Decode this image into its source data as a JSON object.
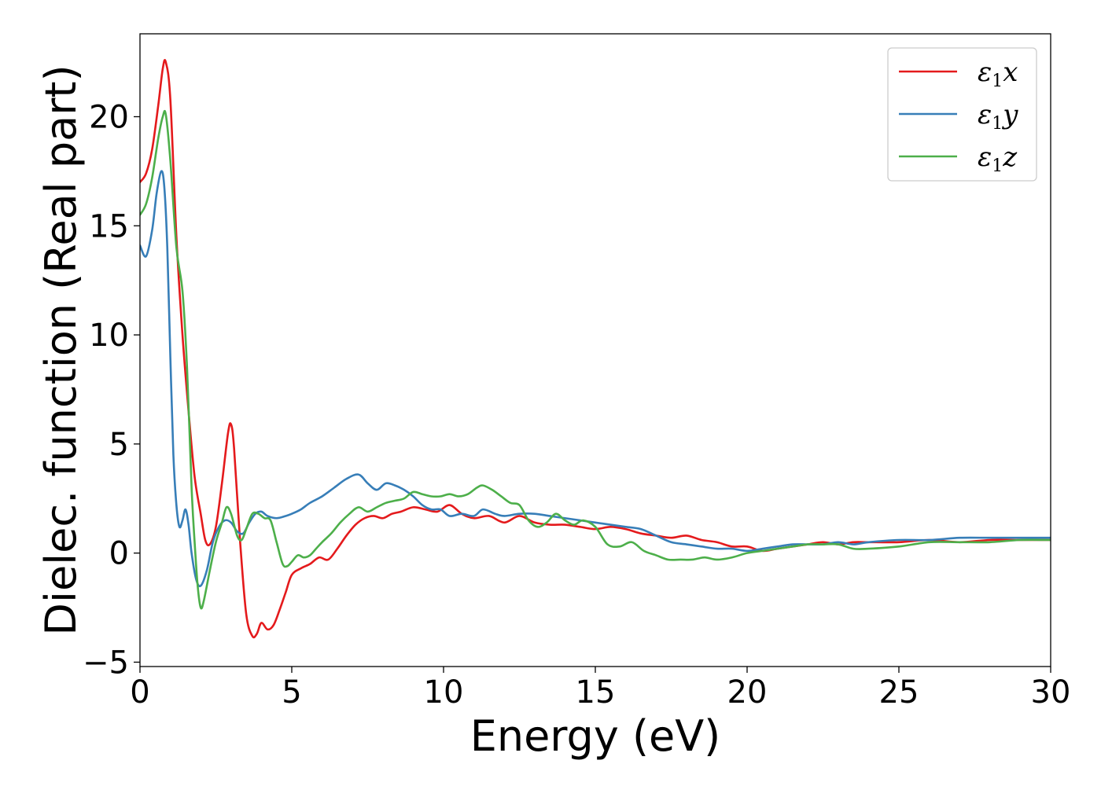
{
  "chart_data": {
    "type": "line",
    "title": "",
    "xlabel": "Energy (eV)",
    "ylabel": "Dielec. function (Real part)",
    "xlim": [
      0,
      30
    ],
    "ylim": [
      -5.2,
      23.8
    ],
    "xticks": [
      0,
      5,
      10,
      15,
      20,
      25,
      30
    ],
    "xtick_labels": [
      "0",
      "5",
      "10",
      "15",
      "20",
      "25",
      "30"
    ],
    "yticks": [
      -5,
      0,
      5,
      10,
      15,
      20
    ],
    "ytick_labels": [
      "−5",
      "0",
      "5",
      "10",
      "15",
      "20"
    ],
    "grid": false,
    "legend_position": "top-right",
    "series": [
      {
        "name": "ε1x",
        "name_base": "ε",
        "name_sub": "1",
        "name_tail": "x",
        "color": "#e41a1c",
        "x": [
          0,
          0.2,
          0.4,
          0.6,
          0.75,
          0.85,
          1.0,
          1.2,
          1.4,
          1.6,
          1.8,
          2.0,
          2.15,
          2.3,
          2.5,
          2.7,
          2.9,
          3.0,
          3.1,
          3.3,
          3.5,
          3.7,
          3.85,
          4.0,
          4.2,
          4.4,
          4.6,
          4.8,
          5.0,
          5.3,
          5.6,
          5.9,
          6.2,
          6.5,
          6.8,
          7.1,
          7.4,
          7.7,
          8.0,
          8.3,
          8.6,
          9.0,
          9.4,
          9.8,
          10.2,
          10.6,
          11.0,
          11.5,
          12.0,
          12.5,
          13.0,
          13.5,
          14.0,
          14.5,
          15.0,
          15.5,
          16.0,
          16.5,
          17.0,
          17.5,
          18.0,
          18.5,
          19.0,
          19.5,
          20.0,
          20.5,
          21.0,
          21.5,
          22.0,
          22.5,
          23.0,
          23.5,
          24.0,
          25.0,
          26.0,
          27.0,
          28.0,
          29.0,
          30.0
        ],
        "y": [
          17.0,
          17.4,
          18.5,
          20.5,
          22.2,
          22.5,
          20.8,
          14.5,
          10.0,
          6.5,
          3.5,
          1.8,
          0.6,
          0.4,
          1.2,
          3.2,
          5.5,
          5.9,
          4.8,
          0.5,
          -2.8,
          -3.8,
          -3.7,
          -3.2,
          -3.5,
          -3.3,
          -2.6,
          -1.8,
          -1.0,
          -0.7,
          -0.5,
          -0.2,
          -0.3,
          0.2,
          0.8,
          1.3,
          1.6,
          1.7,
          1.6,
          1.8,
          1.9,
          2.1,
          2.0,
          1.9,
          2.2,
          1.8,
          1.6,
          1.7,
          1.4,
          1.7,
          1.4,
          1.3,
          1.3,
          1.2,
          1.1,
          1.2,
          1.1,
          0.9,
          0.8,
          0.7,
          0.8,
          0.6,
          0.5,
          0.3,
          0.3,
          0.1,
          0.2,
          0.3,
          0.4,
          0.5,
          0.4,
          0.5,
          0.5,
          0.5,
          0.6,
          0.5,
          0.6,
          0.6,
          0.6
        ]
      },
      {
        "name": "ε1y",
        "name_base": "ε",
        "name_sub": "1",
        "name_tail": "y",
        "color": "#377eb8",
        "x": [
          0,
          0.2,
          0.4,
          0.55,
          0.7,
          0.8,
          0.9,
          1.0,
          1.1,
          1.2,
          1.3,
          1.4,
          1.5,
          1.6,
          1.7,
          1.85,
          2.0,
          2.2,
          2.4,
          2.6,
          2.8,
          3.0,
          3.2,
          3.4,
          3.6,
          3.8,
          4.0,
          4.2,
          4.5,
          4.8,
          5.0,
          5.3,
          5.6,
          6.0,
          6.4,
          6.8,
          7.2,
          7.5,
          7.8,
          8.1,
          8.4,
          8.7,
          9.0,
          9.3,
          9.6,
          9.9,
          10.2,
          10.6,
          11.0,
          11.3,
          11.7,
          12.0,
          12.5,
          13.0,
          13.5,
          14.0,
          14.5,
          15.0,
          15.5,
          16.0,
          16.5,
          17.0,
          17.5,
          18.0,
          18.5,
          19.0,
          19.5,
          20.0,
          20.5,
          21.0,
          21.5,
          22.0,
          22.5,
          23.0,
          23.5,
          24.0,
          25.0,
          26.0,
          27.0,
          28.0,
          29.0,
          30.0
        ],
        "y": [
          14.1,
          13.6,
          14.8,
          16.5,
          17.5,
          16.8,
          14.0,
          9.0,
          4.5,
          2.2,
          1.2,
          1.5,
          2.0,
          1.3,
          0.0,
          -1.2,
          -1.5,
          -0.8,
          0.5,
          1.2,
          1.5,
          1.4,
          1.0,
          0.9,
          1.4,
          1.8,
          1.9,
          1.7,
          1.6,
          1.7,
          1.8,
          2.0,
          2.3,
          2.6,
          3.0,
          3.4,
          3.6,
          3.2,
          2.9,
          3.2,
          3.1,
          2.9,
          2.6,
          2.2,
          2.0,
          2.0,
          1.7,
          1.8,
          1.7,
          2.0,
          1.8,
          1.7,
          1.8,
          1.8,
          1.7,
          1.6,
          1.5,
          1.4,
          1.3,
          1.2,
          1.1,
          0.8,
          0.5,
          0.4,
          0.3,
          0.2,
          0.2,
          0.1,
          0.2,
          0.3,
          0.4,
          0.4,
          0.4,
          0.5,
          0.4,
          0.5,
          0.6,
          0.6,
          0.7,
          0.7,
          0.7,
          0.7
        ]
      },
      {
        "name": "ε1z",
        "name_base": "ε",
        "name_sub": "1",
        "name_tail": "z",
        "color": "#4daf4a",
        "x": [
          0,
          0.2,
          0.4,
          0.6,
          0.75,
          0.85,
          1.0,
          1.2,
          1.4,
          1.55,
          1.7,
          1.8,
          1.9,
          2.0,
          2.1,
          2.3,
          2.5,
          2.7,
          2.85,
          3.0,
          3.2,
          3.35,
          3.5,
          3.7,
          3.9,
          4.1,
          4.3,
          4.5,
          4.7,
          4.85,
          5.0,
          5.2,
          5.4,
          5.6,
          5.8,
          6.0,
          6.3,
          6.6,
          6.9,
          7.2,
          7.5,
          7.8,
          8.1,
          8.4,
          8.7,
          9.0,
          9.3,
          9.6,
          9.9,
          10.2,
          10.5,
          10.8,
          11.1,
          11.3,
          11.6,
          11.9,
          12.2,
          12.5,
          12.8,
          13.1,
          13.4,
          13.7,
          14.0,
          14.3,
          14.6,
          15.0,
          15.4,
          15.8,
          16.2,
          16.6,
          17.0,
          17.4,
          17.8,
          18.2,
          18.6,
          19.0,
          19.5,
          20.0,
          20.5,
          21.0,
          21.5,
          22.0,
          22.5,
          23.0,
          23.5,
          24.0,
          25.0,
          26.0,
          27.0,
          28.0,
          29.0,
          30.0
        ],
        "y": [
          15.5,
          16.0,
          17.2,
          19.0,
          20.0,
          20.1,
          18.0,
          14.0,
          12.0,
          8.5,
          3.0,
          0.5,
          -1.5,
          -2.5,
          -2.2,
          -0.8,
          0.5,
          1.4,
          2.1,
          1.8,
          0.8,
          0.6,
          1.1,
          1.8,
          1.8,
          1.6,
          1.5,
          0.5,
          -0.5,
          -0.6,
          -0.4,
          -0.1,
          -0.2,
          -0.1,
          0.2,
          0.5,
          0.9,
          1.4,
          1.8,
          2.1,
          1.9,
          2.1,
          2.3,
          2.4,
          2.5,
          2.8,
          2.7,
          2.6,
          2.6,
          2.7,
          2.6,
          2.7,
          3.0,
          3.1,
          2.9,
          2.6,
          2.3,
          2.2,
          1.5,
          1.2,
          1.4,
          1.8,
          1.5,
          1.3,
          1.5,
          1.2,
          0.4,
          0.3,
          0.5,
          0.1,
          -0.1,
          -0.3,
          -0.3,
          -0.3,
          -0.2,
          -0.3,
          -0.2,
          0.0,
          0.1,
          0.2,
          0.3,
          0.4,
          0.4,
          0.4,
          0.2,
          0.2,
          0.3,
          0.5,
          0.5,
          0.5,
          0.6,
          0.6
        ]
      }
    ]
  }
}
